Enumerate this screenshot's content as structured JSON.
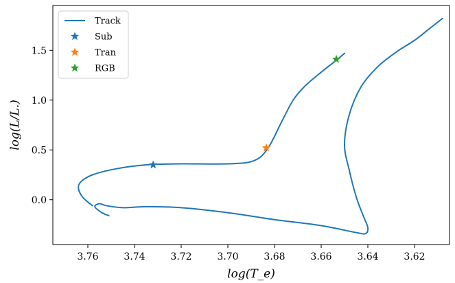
{
  "chart_data": {
    "type": "line",
    "xlabel": "log(T_e)",
    "ylabel": "log(L/L.)",
    "x_inverted": true,
    "xlim": [
      3.775,
      3.605
    ],
    "ylim": [
      -0.45,
      1.95
    ],
    "x_ticks": [
      3.76,
      3.74,
      3.72,
      3.7,
      3.68,
      3.66,
      3.64,
      3.62
    ],
    "x_tick_labels": [
      "3.76",
      "3.74",
      "3.72",
      "3.70",
      "3.68",
      "3.66",
      "3.64",
      "3.62"
    ],
    "y_ticks": [
      0.0,
      0.5,
      1.0,
      1.5
    ],
    "y_tick_labels": [
      "0.0",
      "0.5",
      "1.0",
      "1.5"
    ],
    "grid": false,
    "legend_position": "top-left",
    "series": [
      {
        "name": "Track",
        "kind": "line",
        "color": "#1f77b4",
        "x": [
          3.751,
          3.754,
          3.757,
          3.755,
          3.752,
          3.745,
          3.735,
          3.72,
          3.7,
          3.68,
          3.66,
          3.645,
          3.641,
          3.64,
          3.642,
          3.645,
          3.648,
          3.65,
          3.648,
          3.643,
          3.636,
          3.628,
          3.62,
          3.614,
          3.608
        ],
        "y": [
          -0.16,
          -0.13,
          -0.07,
          -0.04,
          -0.06,
          -0.08,
          -0.07,
          -0.08,
          -0.13,
          -0.2,
          -0.26,
          -0.33,
          -0.34,
          -0.28,
          -0.16,
          0.03,
          0.3,
          0.55,
          0.85,
          1.13,
          1.33,
          1.48,
          1.6,
          1.71,
          1.82
        ]
      },
      {
        "name": "Track",
        "kind": "line-branch",
        "color": "#1f77b4",
        "x": [
          3.758,
          3.762,
          3.764,
          3.763,
          3.758,
          3.748,
          3.735,
          3.72,
          3.7,
          3.689,
          3.683,
          3.677,
          3.672,
          3.667,
          3.66,
          3.653,
          3.65
        ],
        "y": [
          -0.06,
          0.02,
          0.11,
          0.18,
          0.25,
          0.31,
          0.35,
          0.36,
          0.36,
          0.39,
          0.51,
          0.78,
          1.0,
          1.14,
          1.28,
          1.41,
          1.47
        ]
      },
      {
        "name": "Sub",
        "kind": "marker",
        "color": "#1f77b4",
        "x": [
          3.732
        ],
        "y": [
          0.35
        ]
      },
      {
        "name": "Tran",
        "kind": "marker",
        "color": "#ff7f0e",
        "x": [
          3.6835
        ],
        "y": [
          0.52
        ]
      },
      {
        "name": "RGB",
        "kind": "marker",
        "color": "#2ca02c",
        "x": [
          3.6535
        ],
        "y": [
          1.41
        ]
      }
    ],
    "legend": [
      {
        "label": "Track",
        "kind": "line",
        "color": "#1f77b4"
      },
      {
        "label": "Sub",
        "kind": "marker",
        "color": "#1f77b4"
      },
      {
        "label": "Tran",
        "kind": "marker",
        "color": "#ff7f0e"
      },
      {
        "label": "RGB",
        "kind": "marker",
        "color": "#2ca02c"
      }
    ]
  }
}
